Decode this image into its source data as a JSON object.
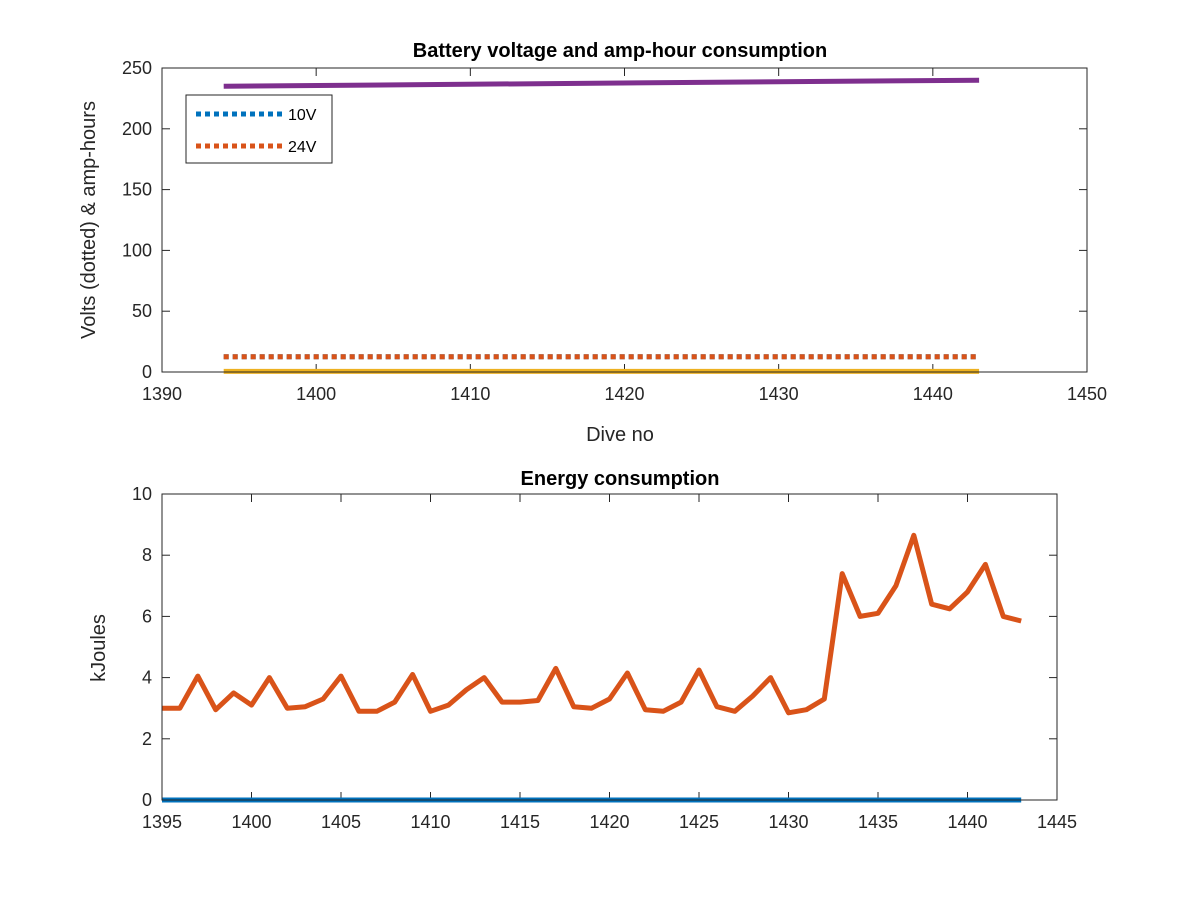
{
  "chart_data": [
    {
      "type": "line",
      "title": "Battery voltage and amp-hour consumption",
      "xlabel": "Dive no",
      "ylabel": "Volts (dotted) & amp-hours",
      "xlim": [
        1390,
        1450
      ],
      "ylim": [
        0,
        250
      ],
      "xticks": [
        1390,
        1400,
        1410,
        1420,
        1430,
        1440,
        1450
      ],
      "yticks": [
        0,
        50,
        100,
        150,
        200,
        250
      ],
      "grid": false,
      "legend_position": "top-left",
      "x": [
        1394,
        1443
      ],
      "series": [
        {
          "name": "10V",
          "style": "dotted",
          "color": "#0072BD",
          "values": [
            12.5,
            12.5
          ]
        },
        {
          "name": "24V",
          "style": "dotted",
          "color": "#D95319",
          "values": [
            12.5,
            12.5
          ]
        },
        {
          "style": "solid",
          "color": "#EDB120",
          "values": [
            0.5,
            0.5
          ]
        },
        {
          "style": "solid",
          "color": "#7E2F8E",
          "values": [
            235,
            240
          ]
        }
      ]
    },
    {
      "type": "line",
      "title": "Energy consumption",
      "xlabel": "",
      "ylabel": "kJoules",
      "xlim": [
        1395,
        1445
      ],
      "ylim": [
        0,
        10
      ],
      "xticks": [
        1395,
        1400,
        1405,
        1410,
        1415,
        1420,
        1425,
        1430,
        1435,
        1440,
        1445
      ],
      "yticks": [
        0,
        2,
        4,
        6,
        8,
        10
      ],
      "grid": false,
      "series": [
        {
          "style": "solid",
          "color": "#0072BD",
          "x": [
            1395,
            1443
          ],
          "values": [
            0,
            0
          ]
        },
        {
          "style": "solid",
          "color": "#D95319",
          "x": [
            1395,
            1396,
            1397,
            1398,
            1399,
            1400,
            1401,
            1402,
            1403,
            1404,
            1405,
            1406,
            1407,
            1408,
            1409,
            1410,
            1411,
            1412,
            1413,
            1414,
            1415,
            1416,
            1417,
            1418,
            1419,
            1420,
            1421,
            1422,
            1423,
            1424,
            1425,
            1426,
            1427,
            1428,
            1429,
            1430,
            1431,
            1432,
            1433,
            1434,
            1435,
            1436,
            1437,
            1438,
            1439,
            1440,
            1441,
            1442,
            1443
          ],
          "values": [
            3.0,
            3.0,
            4.05,
            2.95,
            3.5,
            3.1,
            4.0,
            3.0,
            3.05,
            3.3,
            4.05,
            2.9,
            2.9,
            3.2,
            4.1,
            2.9,
            3.1,
            3.6,
            4.0,
            3.2,
            3.2,
            3.25,
            4.3,
            3.05,
            3.0,
            3.3,
            4.15,
            2.95,
            2.9,
            3.2,
            4.25,
            3.05,
            2.9,
            3.4,
            4.0,
            2.85,
            2.95,
            3.3,
            7.4,
            6.0,
            6.1,
            7.0,
            8.65,
            6.4,
            6.25,
            6.8,
            7.7,
            6.0,
            5.85
          ]
        }
      ]
    }
  ]
}
